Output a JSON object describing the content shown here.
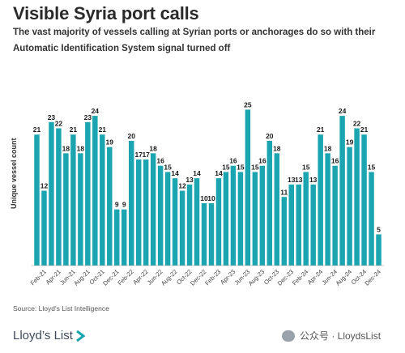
{
  "title": "Visible Syria port calls",
  "subtitle": "The vast majority of vessels calling at Syrian ports or anchorages do so with their Automatic Identification System signal turned off",
  "source": "Source: Lloyd's List Intelligence",
  "logo_text": "Lloyd’s List",
  "watermark": "公众号 · LloydsList",
  "colors": {
    "bar": "#1aa5b0"
  },
  "chart_data": {
    "type": "bar",
    "ylabel": "Unique vessel count",
    "categories": [
      "Jan-21",
      "Feb-21",
      "Mar-21",
      "Apr-21",
      "May-21",
      "Jun-21",
      "Jul-21",
      "Aug-21",
      "Sep-21",
      "Oct-21",
      "Nov-21",
      "Dec-21",
      "Jan-22",
      "Feb-22",
      "Mar-22",
      "Apr-22",
      "May-22",
      "Jun-22",
      "Jul-22",
      "Aug-22",
      "Sep-22",
      "Oct-22",
      "Nov-22",
      "Dec-22",
      "Jan-23",
      "Feb-23",
      "Mar-23",
      "Apr-23",
      "May-23",
      "Jun-23",
      "Jul-23",
      "Aug-23",
      "Sep-23",
      "Oct-23",
      "Nov-23",
      "Dec-23",
      "Jan-24",
      "Feb-24",
      "Mar-24",
      "Apr-24",
      "May-24",
      "Jun-24",
      "Jul-24",
      "Aug-24",
      "Sep-24",
      "Oct-24",
      "Nov-24",
      "Dec-24"
    ],
    "tick_labels": [
      "Feb-21",
      "Apr-21",
      "Jun-21",
      "Aug-21",
      "Oct-21",
      "Dec-21",
      "Feb-22",
      "Apr-22",
      "Jun-22",
      "Aug-22",
      "Oct-22",
      "Dec-22",
      "Feb-23",
      "Apr-23",
      "Jun-23",
      "Aug-23",
      "Oct-23",
      "Dec-23",
      "Feb-24",
      "Apr-24",
      "Jun-24",
      "Aug-24",
      "Oct-24",
      "Dec-24"
    ],
    "values": [
      21,
      12,
      23,
      22,
      18,
      21,
      18,
      23,
      24,
      21,
      19,
      9,
      9,
      20,
      17,
      17,
      18,
      16,
      15,
      14,
      12,
      13,
      14,
      10,
      10,
      14,
      15,
      16,
      15,
      25,
      15,
      16,
      20,
      18,
      11,
      13,
      13,
      15,
      13,
      21,
      18,
      16,
      24,
      19,
      22,
      21,
      15,
      5
    ],
    "ylim": [
      0,
      27
    ],
    "grid": false
  }
}
